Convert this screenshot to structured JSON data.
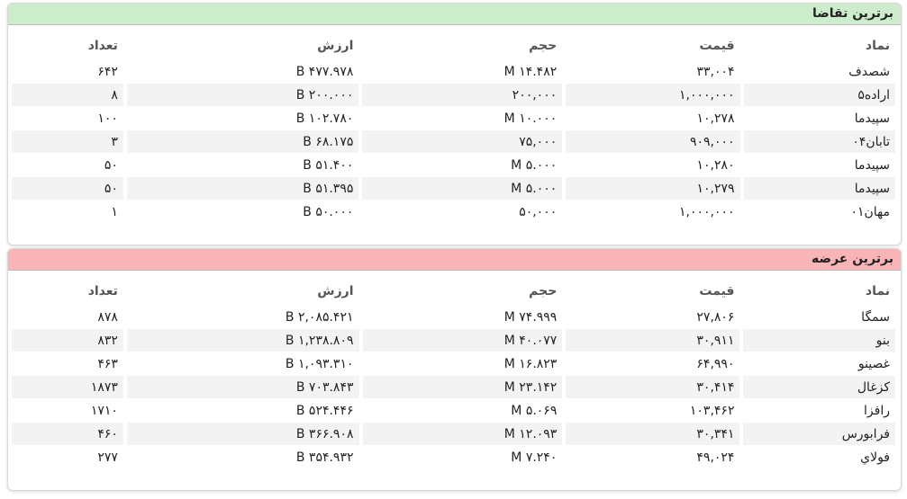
{
  "panels": [
    {
      "title": "برترین تقاضا",
      "columns": [
        "نماد",
        "قیمت",
        "حجم",
        "ارزش",
        "تعداد"
      ],
      "rows": [
        [
          "شصدف",
          "۳۳,۰۰۴",
          "۱۴.۴۸۲ M",
          "۴۷۷.۹۷۸ B",
          "۶۴۲"
        ],
        [
          "اراده۵",
          "۱,۰۰۰,۰۰۰",
          "۲۰۰,۰۰۰",
          "۲۰۰.۰۰۰ B",
          "۸"
        ],
        [
          "سپیدما",
          "۱۰,۲۷۸",
          "۱۰.۰۰۰ M",
          "۱۰۲.۷۸۰ B",
          "۱۰۰"
        ],
        [
          "تابان۰۴",
          "۹۰۹,۰۰۰",
          "۷۵,۰۰۰",
          "۶۸.۱۷۵ B",
          "۳"
        ],
        [
          "سپیدما",
          "۱۰,۲۸۰",
          "۵.۰۰۰ M",
          "۵۱.۴۰۰ B",
          "۵۰"
        ],
        [
          "سپیدما",
          "۱۰,۲۷۹",
          "۵.۰۰۰ M",
          "۵۱.۳۹۵ B",
          "۵۰"
        ],
        [
          "مهان۰۱",
          "۱,۰۰۰,۰۰۰",
          "۵۰,۰۰۰",
          "۵۰.۰۰۰ B",
          "۱"
        ]
      ]
    },
    {
      "title": "برترین عرضه",
      "columns": [
        "نماد",
        "قیمت",
        "حجم",
        "ارزش",
        "تعداد"
      ],
      "rows": [
        [
          "سمگا",
          "۲۷,۸۰۶",
          "۷۴.۹۹۹ M",
          "۲,۰۸۵.۴۲۱ B",
          "۸۷۸"
        ],
        [
          "بنو",
          "۳۰,۹۱۱",
          "۴۰.۰۷۷ M",
          "۱,۲۳۸.۸۰۹ B",
          "۸۳۲"
        ],
        [
          "غصینو",
          "۶۴,۹۹۰",
          "۱۶.۸۲۳ M",
          "۱,۰۹۳.۳۱۰ B",
          "۴۶۳"
        ],
        [
          "کزغال",
          "۳۰,۴۱۴",
          "۲۳.۱۴۲ M",
          "۷۰۳.۸۴۳ B",
          "۱۸۷۳"
        ],
        [
          "رافزا",
          "۱۰۳,۴۶۲",
          "۵.۰۶۹ M",
          "۵۲۴.۴۴۶ B",
          "۱۷۱۰"
        ],
        [
          "فرابورس",
          "۳۰,۳۴۱",
          "۱۲.۰۹۳ M",
          "۳۶۶.۹۰۸ B",
          "۴۶۰"
        ],
        [
          "فولاي",
          "۴۹,۰۲۴",
          "۷.۲۴۰ M",
          "۳۵۴.۹۳۲ B",
          "۲۷۷"
        ]
      ]
    }
  ]
}
